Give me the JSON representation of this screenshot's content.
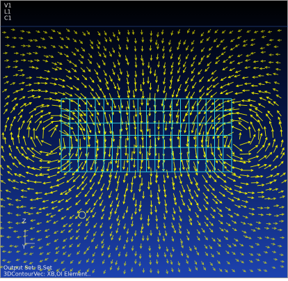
{
  "viewport": {
    "corner_labels": [
      "V1",
      "L1",
      "C1"
    ],
    "triad": [
      "Z",
      "Y"
    ],
    "status": [
      "Output Set: B Set",
      "3DContourVec: XB,Ol Element.."
    ]
  }
}
